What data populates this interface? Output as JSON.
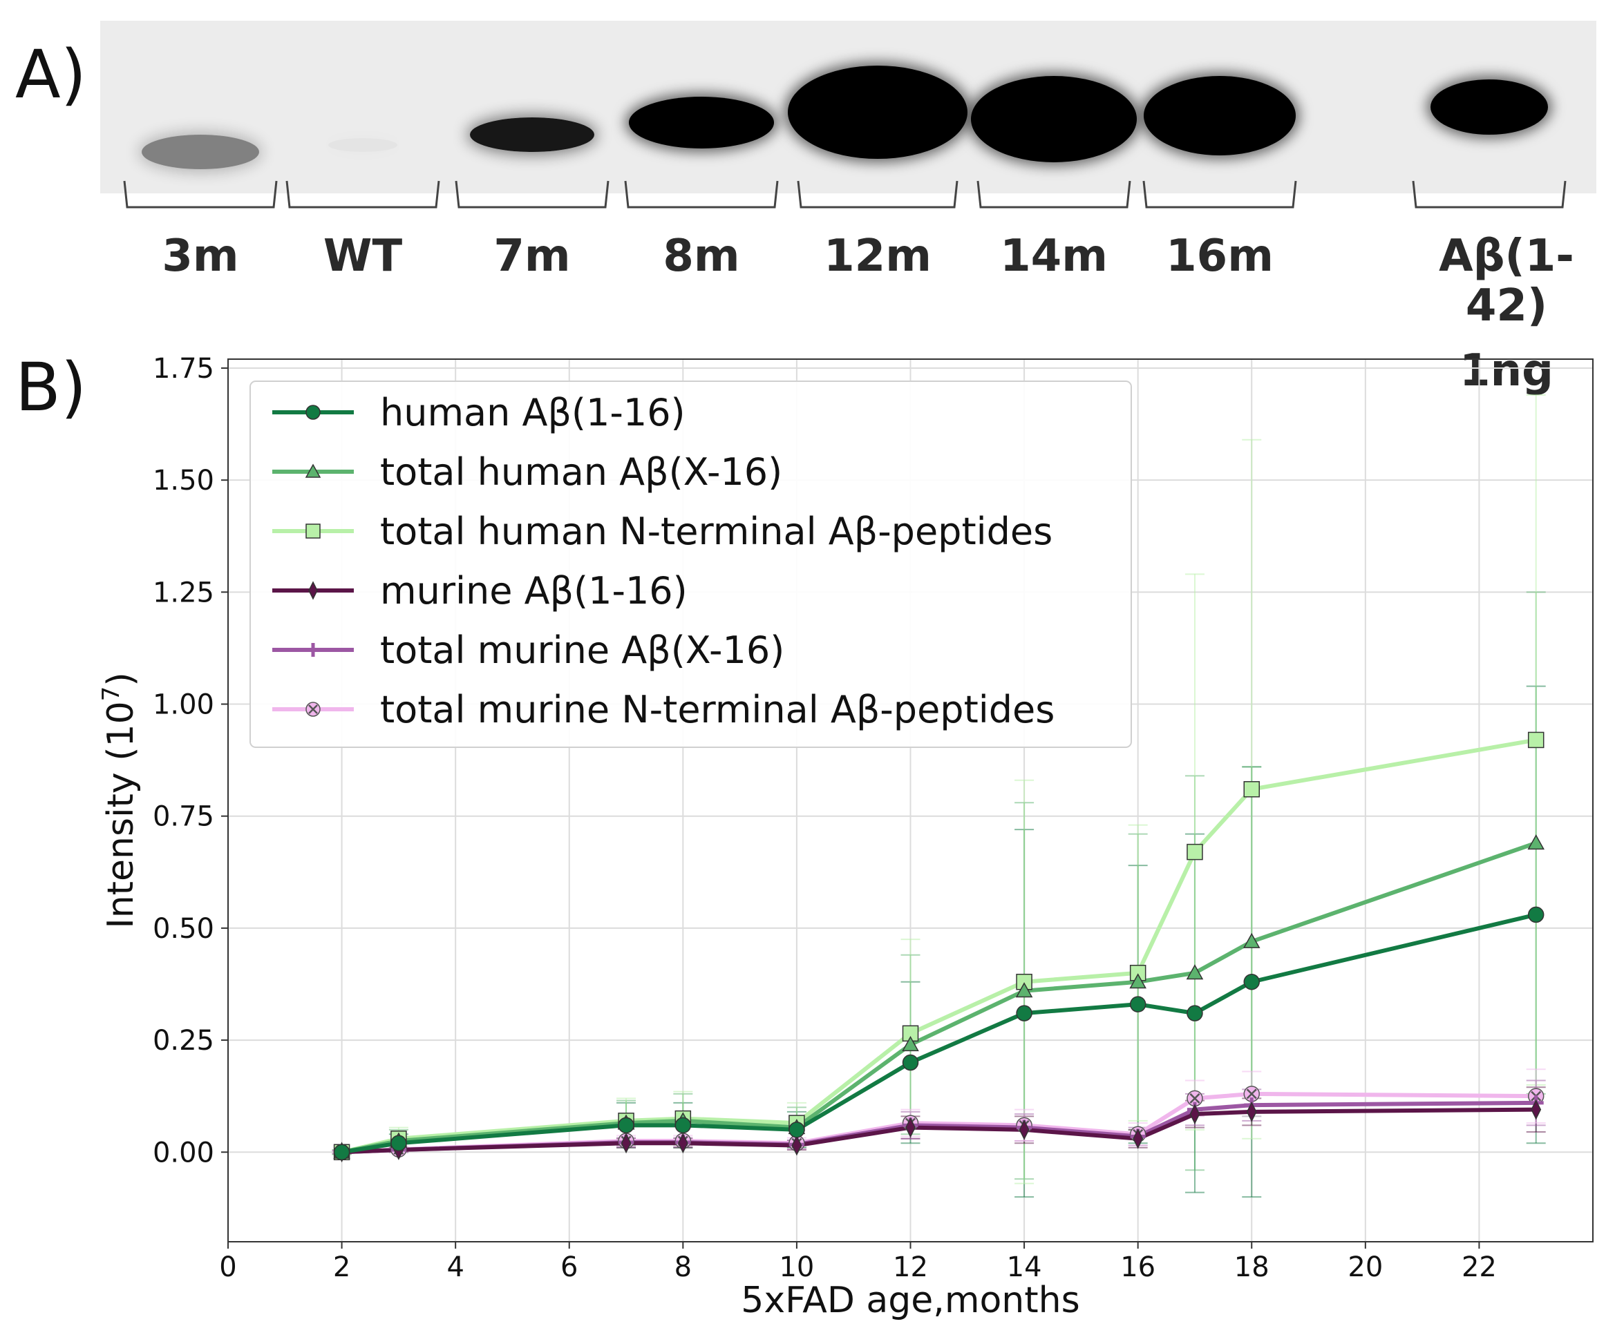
{
  "panel_a": {
    "label": "A)",
    "lanes": [
      {
        "label": "3m",
        "intensity": 0.45
      },
      {
        "label": "WT",
        "intensity": 0.03
      },
      {
        "label": "7m",
        "intensity": 0.9
      },
      {
        "label": "8m",
        "intensity": 1.0
      },
      {
        "label": "12m",
        "intensity": 1.0
      },
      {
        "label": "14m",
        "intensity": 1.0
      },
      {
        "label": "16m",
        "intensity": 1.0
      },
      {
        "label": "Aβ(1-42)",
        "label2": "1ng",
        "intensity": 1.0
      }
    ]
  },
  "panel_b": {
    "label": "B)"
  },
  "chart_data": {
    "type": "line",
    "xlabel": "5xFAD age,months",
    "ylabel": "Intensity (10",
    "ylabel_exp": "7",
    "ylabel_close": ")",
    "xlim": [
      0,
      24
    ],
    "ylim": [
      -0.2,
      1.77
    ],
    "xticks": [
      0,
      2,
      4,
      6,
      8,
      10,
      12,
      14,
      16,
      18,
      20,
      22
    ],
    "yticks": [
      0.0,
      0.25,
      0.5,
      0.75,
      1.0,
      1.25,
      1.5,
      1.75
    ],
    "ytick_labels": [
      "0.00",
      "0.25",
      "0.50",
      "0.75",
      "1.00",
      "1.25",
      "1.50",
      "1.75"
    ],
    "grid": true,
    "legend_position": "top-left",
    "x": [
      2,
      3,
      7,
      8,
      10,
      12,
      14,
      16,
      17,
      18,
      23
    ],
    "series": [
      {
        "name": "human Aβ(1-16)",
        "color": "#127a43",
        "marker": "circle",
        "values": [
          0.0,
          0.02,
          0.06,
          0.06,
          0.05,
          0.2,
          0.31,
          0.33,
          0.31,
          0.38,
          0.53
        ],
        "errors": [
          0.005,
          0.02,
          0.05,
          0.05,
          0.04,
          0.18,
          0.41,
          0.31,
          0.4,
          0.48,
          0.51
        ]
      },
      {
        "name": "total human Aβ(X-16)",
        "color": "#5cb36e",
        "marker": "triangle",
        "values": [
          0.0,
          0.025,
          0.065,
          0.07,
          0.055,
          0.24,
          0.36,
          0.38,
          0.4,
          0.47,
          0.69
        ],
        "errors": [
          0.005,
          0.025,
          0.05,
          0.06,
          0.045,
          0.2,
          0.42,
          0.33,
          0.44,
          0.39,
          0.56
        ]
      },
      {
        "name": "total human N-terminal Aβ-peptides",
        "color": "#b8f0a8",
        "marker": "square",
        "values": [
          0.0,
          0.03,
          0.07,
          0.075,
          0.065,
          0.265,
          0.38,
          0.4,
          0.67,
          0.81,
          0.92
        ],
        "errors": [
          0.005,
          0.025,
          0.05,
          0.06,
          0.045,
          0.21,
          0.45,
          0.33,
          0.62,
          0.78,
          0.77
        ]
      },
      {
        "name": "murine Aβ(1-16)",
        "color": "#5b1548",
        "marker": "diamond",
        "values": [
          0.0,
          0.005,
          0.02,
          0.02,
          0.015,
          0.055,
          0.05,
          0.03,
          0.085,
          0.09,
          0.095
        ],
        "errors": [
          0.003,
          0.005,
          0.01,
          0.01,
          0.01,
          0.025,
          0.03,
          0.02,
          0.03,
          0.03,
          0.05
        ]
      },
      {
        "name": "total murine Aβ(X-16)",
        "color": "#9c57a3",
        "marker": "plus",
        "values": [
          0.0,
          0.005,
          0.022,
          0.022,
          0.017,
          0.06,
          0.055,
          0.035,
          0.095,
          0.105,
          0.11
        ],
        "errors": [
          0.003,
          0.005,
          0.01,
          0.01,
          0.01,
          0.03,
          0.03,
          0.02,
          0.035,
          0.035,
          0.05
        ]
      },
      {
        "name": "total murine N-terminal Aβ-peptides",
        "color": "#f0b6ec",
        "marker": "x",
        "values": [
          0.0,
          0.006,
          0.025,
          0.025,
          0.02,
          0.065,
          0.06,
          0.04,
          0.12,
          0.13,
          0.125
        ],
        "errors": [
          0.003,
          0.006,
          0.012,
          0.012,
          0.012,
          0.03,
          0.035,
          0.025,
          0.04,
          0.05,
          0.06
        ]
      }
    ]
  }
}
